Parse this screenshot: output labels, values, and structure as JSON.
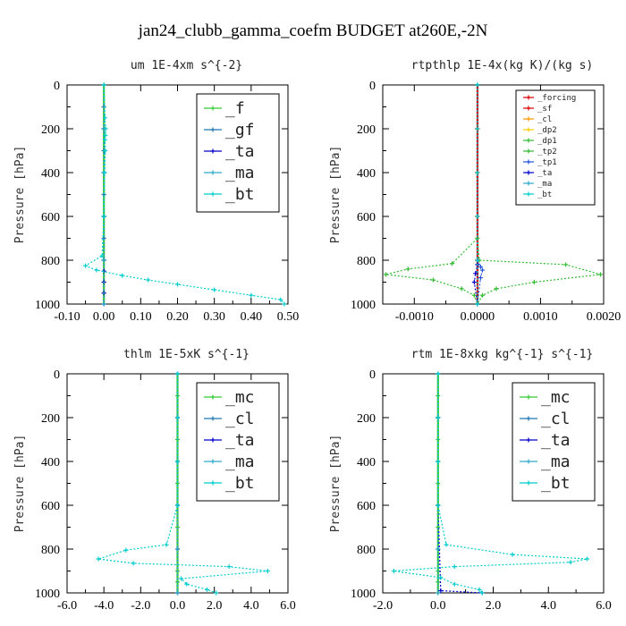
{
  "title": "jan24_clubb_gamma_coefm  BUDGET at260E,-2N",
  "chart_data": [
    {
      "type": "line",
      "title": "um  1E-4xm s^{-2}",
      "ylabel": "Pressure [hPa]",
      "xlim": [
        -0.1,
        0.5
      ],
      "ylim": [
        1000,
        0
      ],
      "xticks": [
        "-0.10",
        "0.00",
        "0.10",
        "0.20",
        "0.30",
        "0.40",
        "0.50"
      ],
      "xtick_values": [
        -0.1,
        0.0,
        0.1,
        0.2,
        0.3,
        0.4,
        0.5
      ],
      "yticks": [
        "0",
        "200",
        "400",
        "600",
        "800",
        "1000"
      ],
      "ytick_values": [
        0,
        200,
        400,
        600,
        800,
        1000
      ],
      "legend_position": "top-right",
      "legend_size": "large",
      "series": [
        {
          "name": "_f",
          "color": "#33cc33",
          "x": [
            0,
            0,
            0,
            0,
            0,
            0,
            0,
            0,
            0,
            0,
            0,
            0
          ],
          "y": [
            0,
            100,
            200,
            300,
            400,
            500,
            600,
            700,
            800,
            900,
            950,
            1000
          ]
        },
        {
          "name": "_gf",
          "color": "#1f77b4",
          "x": [
            0,
            0,
            0,
            0,
            0,
            0,
            0,
            0,
            0,
            0
          ],
          "y": [
            0,
            100,
            200,
            300,
            400,
            500,
            600,
            700,
            800,
            1000
          ]
        },
        {
          "name": "_ta",
          "color": "#0000cc",
          "x": [
            0,
            0,
            0,
            0,
            0,
            0,
            0,
            0,
            0
          ],
          "y": [
            0,
            200,
            400,
            600,
            800,
            850,
            900,
            950,
            1000
          ]
        },
        {
          "name": "_ma",
          "color": "#33aacc",
          "x": [
            0,
            0,
            0,
            0,
            0,
            0
          ],
          "y": [
            0,
            200,
            400,
            600,
            800,
            1000
          ]
        },
        {
          "name": "_bt",
          "color": "#00cccc",
          "x": [
            0,
            0.003,
            0.005,
            0.004,
            0.003,
            0.004,
            0.002,
            0,
            -0.005,
            -0.05,
            -0.02,
            0.05,
            0.12,
            0.2,
            0.3,
            0.4,
            0.48,
            0.49
          ],
          "y": [
            0,
            150,
            200,
            230,
            250,
            300,
            400,
            600,
            780,
            825,
            845,
            870,
            890,
            910,
            935,
            960,
            980,
            1000
          ]
        }
      ]
    },
    {
      "type": "line",
      "title": "rtpthlp  1E-4x(kg K)/(kg s)",
      "ylabel": "Pressure [hPa]",
      "xlim": [
        -0.0015,
        0.002
      ],
      "ylim": [
        1000,
        0
      ],
      "xticks": [
        "-0.0010",
        "0.0000",
        "0.0010",
        "0.0020"
      ],
      "xtick_values": [
        -0.001,
        0.0,
        0.001,
        0.002
      ],
      "yticks": [
        "0",
        "200",
        "400",
        "600",
        "800",
        "1000"
      ],
      "ytick_values": [
        0,
        200,
        400,
        600,
        800,
        1000
      ],
      "legend_position": "top-right",
      "legend_size": "small",
      "series": [
        {
          "name": "_forcing",
          "color": "#dd0000",
          "x": [
            0,
            0,
            0,
            0,
            0,
            0
          ],
          "y": [
            0,
            200,
            400,
            600,
            800,
            1000
          ]
        },
        {
          "name": "_sf",
          "color": "#dd0000",
          "x": [
            0,
            0,
            0,
            0,
            0,
            0
          ],
          "y": [
            0,
            200,
            400,
            600,
            800,
            1000
          ]
        },
        {
          "name": "_cl",
          "color": "#ff9900",
          "x": [
            0,
            0,
            0,
            0,
            0,
            0
          ],
          "y": [
            0,
            200,
            400,
            600,
            800,
            1000
          ]
        },
        {
          "name": "_dp2",
          "color": "#ffcc00",
          "x": [
            0,
            0,
            0,
            0,
            0,
            0
          ],
          "y": [
            0,
            200,
            400,
            600,
            800,
            1000
          ]
        },
        {
          "name": "_dp1",
          "color": "#33bb33",
          "x": [
            0,
            0,
            3e-05,
            0.0014,
            0.00195,
            0.0009,
            0.0003,
            8e-05,
            0
          ],
          "y": [
            0,
            700,
            800,
            820,
            865,
            900,
            930,
            960,
            1000
          ]
        },
        {
          "name": "_tp2",
          "color": "#33bb33",
          "x": [
            0,
            0,
            -0.0004,
            -0.0011,
            -0.00145,
            -0.0007,
            -0.00025,
            -5e-05,
            0
          ],
          "y": [
            0,
            700,
            815,
            840,
            865,
            890,
            930,
            960,
            1000
          ]
        },
        {
          "name": "_tp1",
          "color": "#2255dd",
          "x": [
            0,
            0,
            5e-05,
            8e-05,
            5e-05,
            0
          ],
          "y": [
            0,
            800,
            830,
            845,
            880,
            1000
          ]
        },
        {
          "name": "_ta",
          "color": "#0000cc",
          "x": [
            0,
            0,
            -3e-05,
            -5e-05,
            0
          ],
          "y": [
            0,
            820,
            860,
            900,
            1000
          ]
        },
        {
          "name": "_ma",
          "color": "#33aacc",
          "x": [
            0,
            0,
            0,
            0,
            0,
            0
          ],
          "y": [
            0,
            200,
            400,
            600,
            800,
            1000
          ]
        },
        {
          "name": "_bt",
          "color": "#00cccc",
          "x": [
            0,
            0,
            0,
            0,
            0,
            0
          ],
          "y": [
            0,
            200,
            400,
            600,
            800,
            1000
          ]
        }
      ]
    },
    {
      "type": "line",
      "title": "thlm  1E-5xK s^{-1}",
      "ylabel": "Pressure [hPa]",
      "xlim": [
        -6,
        6
      ],
      "ylim": [
        1000,
        0
      ],
      "xticks": [
        "-6.0",
        "-4.0",
        "-2.0",
        "0.0",
        "2.0",
        "4.0",
        "6.0"
      ],
      "xtick_values": [
        -6,
        -4,
        -2,
        0,
        2,
        4,
        6
      ],
      "yticks": [
        "0",
        "200",
        "400",
        "600",
        "800",
        "1000"
      ],
      "ytick_values": [
        0,
        200,
        400,
        600,
        800,
        1000
      ],
      "legend_position": "top-right",
      "legend_size": "large",
      "series": [
        {
          "name": "_mc",
          "color": "#33cc33",
          "x": [
            0,
            0,
            0,
            0,
            0,
            0,
            0,
            0,
            0,
            0,
            0,
            0
          ],
          "y": [
            0,
            100,
            200,
            300,
            400,
            500,
            600,
            700,
            800,
            900,
            950,
            1000
          ]
        },
        {
          "name": "_cl",
          "color": "#1f77b4",
          "x": [
            0,
            0,
            0,
            0,
            0,
            0
          ],
          "y": [
            0,
            200,
            400,
            600,
            800,
            1000
          ]
        },
        {
          "name": "_ta",
          "color": "#0000cc",
          "x": [
            0,
            0,
            0,
            0,
            0,
            0
          ],
          "y": [
            0,
            200,
            400,
            600,
            800,
            1000
          ]
        },
        {
          "name": "_ma",
          "color": "#33aacc",
          "x": [
            0,
            0,
            0,
            0,
            0,
            0
          ],
          "y": [
            0,
            200,
            400,
            600,
            800,
            1000
          ]
        },
        {
          "name": "_bt",
          "color": "#00cccc",
          "x": [
            0,
            0,
            0,
            0,
            -0.6,
            -2.8,
            -4.3,
            -2.4,
            2.8,
            4.9,
            0.2,
            0.5,
            1.6,
            2.1
          ],
          "y": [
            0,
            200,
            400,
            600,
            780,
            805,
            845,
            865,
            880,
            900,
            935,
            960,
            985,
            1000
          ]
        }
      ]
    },
    {
      "type": "line",
      "title": "rtm  1E-8xkg kg^{-1} s^{-1}",
      "ylabel": "Pressure [hPa]",
      "xlim": [
        -2,
        6
      ],
      "ylim": [
        1000,
        0
      ],
      "xticks": [
        "-2.0",
        "0.0",
        "2.0",
        "4.0",
        "6.0"
      ],
      "xtick_values": [
        -2,
        0,
        2,
        4,
        6
      ],
      "yticks": [
        "0",
        "200",
        "400",
        "600",
        "800",
        "1000"
      ],
      "ytick_values": [
        0,
        200,
        400,
        600,
        800,
        1000
      ],
      "legend_position": "top-right",
      "legend_size": "large",
      "series": [
        {
          "name": "_mc",
          "color": "#33cc33",
          "x": [
            0,
            0,
            0,
            0,
            0,
            0,
            0,
            0,
            0,
            0,
            0,
            0
          ],
          "y": [
            0,
            100,
            200,
            300,
            400,
            500,
            600,
            700,
            800,
            900,
            950,
            1000
          ]
        },
        {
          "name": "_cl",
          "color": "#1f77b4",
          "x": [
            0,
            0,
            0,
            0,
            0,
            0
          ],
          "y": [
            0,
            200,
            400,
            600,
            800,
            1000
          ]
        },
        {
          "name": "_ta",
          "color": "#0000cc",
          "x": [
            0,
            0,
            0,
            0.1,
            1.6
          ],
          "y": [
            0,
            200,
            600,
            990,
            1000
          ]
        },
        {
          "name": "_ma",
          "color": "#33aacc",
          "x": [
            0,
            0,
            0,
            0,
            0,
            0
          ],
          "y": [
            0,
            200,
            400,
            600,
            800,
            1000
          ]
        },
        {
          "name": "_bt",
          "color": "#00cccc",
          "x": [
            0,
            0,
            0,
            0,
            0.3,
            2.7,
            5.4,
            4.8,
            0.6,
            -1.6,
            0.1,
            0.6,
            1.5,
            1.6
          ],
          "y": [
            0,
            200,
            400,
            600,
            780,
            825,
            845,
            860,
            880,
            900,
            930,
            960,
            985,
            1000
          ]
        }
      ]
    }
  ]
}
